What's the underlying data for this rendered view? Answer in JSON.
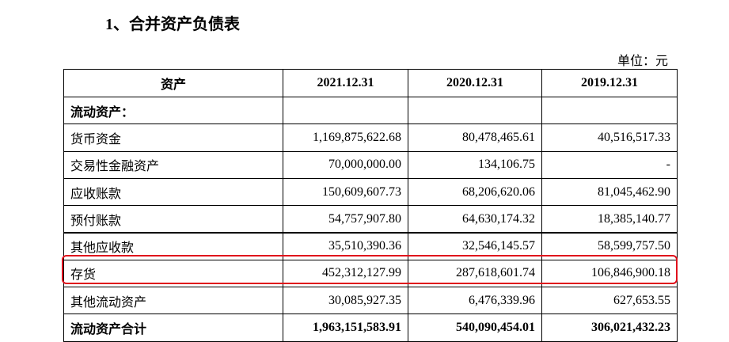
{
  "header": {
    "title": "1、合并资产负债表",
    "unit": "单位：元"
  },
  "table": {
    "columns": [
      "资产",
      "2021.12.31",
      "2020.12.31",
      "2019.12.31"
    ],
    "rows": [
      [
        "流动资产："
      ],
      [
        "货币资金",
        "1,169,875,622.68",
        "80,478,465.61",
        "40,516,517.33"
      ],
      [
        "交易性金融资产",
        "70,000,000.00",
        "134,106.75",
        "-"
      ],
      [
        "应收账款",
        "150,609,607.73",
        "68,206,620.06",
        "81,045,462.90"
      ],
      [
        "预付账款",
        "54,757,907.80",
        "64,630,174.32",
        "18,385,140.77"
      ],
      [
        "其他应收款",
        "35,510,390.36",
        "32,546,145.57",
        "58,599,757.50"
      ],
      [
        "存货",
        "452,312,127.99",
        "287,618,601.74",
        "106,846,900.18"
      ],
      [
        "其他流动资产",
        "30,085,927.35",
        "6,476,339.96",
        "627,653.55"
      ],
      [
        "流动资产合计",
        "1,963,151,583.91",
        "540,090,454.01",
        "306,021,432.23"
      ]
    ]
  }
}
